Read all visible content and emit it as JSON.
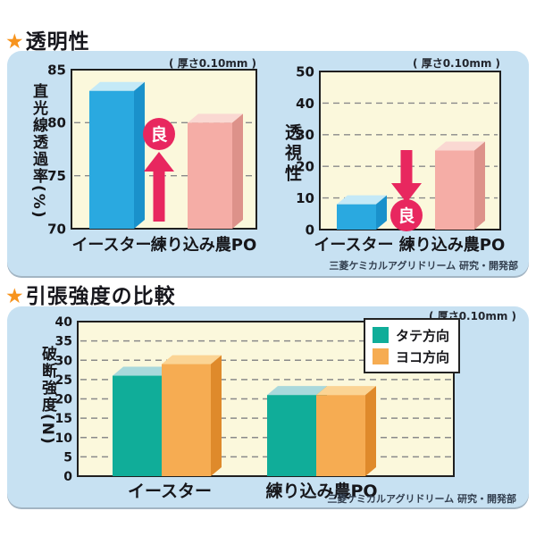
{
  "sections": [
    {
      "star": "★",
      "title": "透明性",
      "attribution": "三菱ケミカルアグリドリーム 研究・開発部"
    },
    {
      "star": "★",
      "title": "引張強度の比較",
      "attribution": "三菱ケミカルアグリドリーム 研究・開発部"
    }
  ],
  "colors": {
    "panel_bg": "#C7E1F2",
    "plot_bg": "#FBF8DC",
    "grid": "#8a8a8a",
    "axis": "#1f1f1f",
    "star_accent": "#F7941E",
    "annotation": "#E8275F"
  },
  "chart_data": [
    {
      "id": "light-transmittance",
      "type": "bar",
      "ylabel": "直光線透過率(%)",
      "thickness_note": "( 厚さ0.10mm )",
      "categories": [
        "イースター",
        "練り込み農PO"
      ],
      "values": [
        83,
        80
      ],
      "bar_colors": [
        {
          "front": "#2AA9E0",
          "top": "#C4E9F7",
          "side": "#1A91CB"
        },
        {
          "front": "#F5ADA6",
          "top": "#FAD8D2",
          "side": "#DD928A"
        }
      ],
      "ylim": [
        70,
        85
      ],
      "yticks": [
        70,
        75,
        80,
        85
      ],
      "grid": true,
      "annotation": {
        "label": "良",
        "direction": "up",
        "color": "#E8275F"
      }
    },
    {
      "id": "see-through",
      "type": "bar",
      "ylabel": "透視性",
      "thickness_note": "( 厚さ0.10mm )",
      "categories": [
        "イースター",
        "練り込み農PO"
      ],
      "values": [
        8,
        25
      ],
      "bar_colors": [
        {
          "front": "#2AA9E0",
          "top": "#C4E9F7",
          "side": "#1A91CB"
        },
        {
          "front": "#F5ADA6",
          "top": "#FAD8D2",
          "side": "#DD928A"
        }
      ],
      "ylim": [
        0,
        50
      ],
      "yticks": [
        0,
        10,
        20,
        30,
        40,
        50
      ],
      "grid": true,
      "annotation": {
        "label": "良",
        "direction": "down",
        "color": "#E8275F"
      }
    },
    {
      "id": "tensile-strength",
      "type": "bar",
      "ylabel": "破断強度(N)",
      "thickness_note": "( 厚さ0.10mm )",
      "categories": [
        "イースター",
        "練り込み農PO"
      ],
      "series": [
        {
          "name": "タテ方向",
          "values": [
            26,
            21
          ],
          "color": {
            "front": "#10AD99",
            "top": "#A9D9DC",
            "side": "#0C8C7C"
          }
        },
        {
          "name": "ヨコ方向",
          "values": [
            29,
            21
          ],
          "color": {
            "front": "#F6AC52",
            "top": "#FBD494",
            "side": "#DF8A2B"
          }
        }
      ],
      "ylim": [
        0,
        40
      ],
      "yticks": [
        0,
        5,
        10,
        15,
        20,
        25,
        30,
        35,
        40
      ],
      "grid": true,
      "legend_position": "top-right"
    }
  ]
}
